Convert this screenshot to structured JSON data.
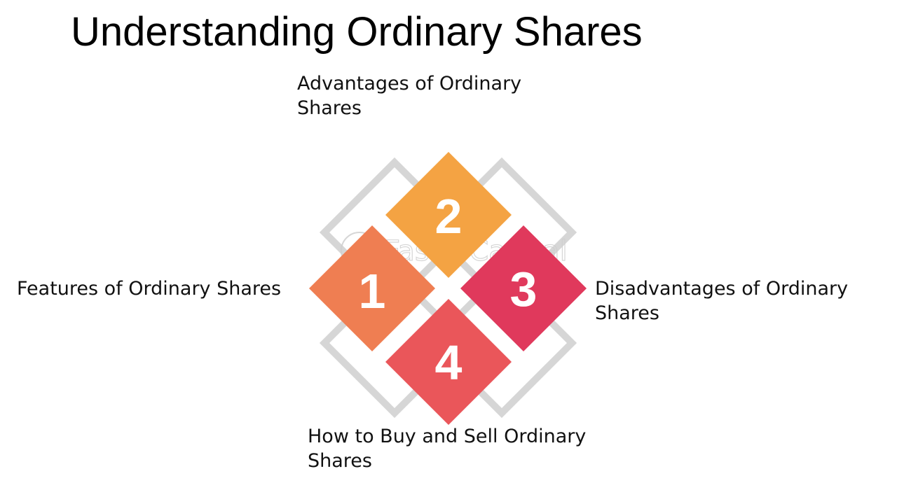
{
  "title": "Understanding Ordinary Shares",
  "items": [
    {
      "number": "1",
      "label": "Features of Ordinary Shares",
      "color": "#ef7e52"
    },
    {
      "number": "2",
      "label": "Advantages of Ordinary Shares",
      "color": "#f4a343"
    },
    {
      "number": "3",
      "label": "Disadvantages of Ordinary Shares",
      "color": "#e0395c"
    },
    {
      "number": "4",
      "label": "How to Buy and Sell Ordinary Shares",
      "color": "#ea565a"
    }
  ],
  "watermark": "FasterCapital",
  "colors": {
    "outline": "#d6d6d6",
    "background": "#ffffff"
  }
}
